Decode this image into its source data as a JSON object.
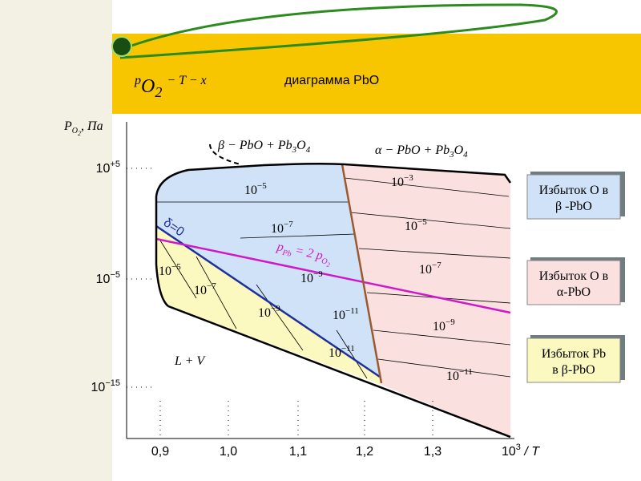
{
  "title": {
    "p": "p",
    "p_sub": "O",
    "p_sub2": "2",
    "formula_rest": "− T − x",
    "text": "диаграмма PbO"
  },
  "axes": {
    "y_label": {
      "p": "P",
      "sub": "O",
      "sub2": "2",
      "unit": ", Па"
    },
    "x_label": {
      "base": "10",
      "exp": "3",
      "rest": " / T"
    },
    "y_ticks": [
      {
        "base": "10",
        "exp": "+5"
      },
      {
        "base": "10",
        "exp": "−5"
      },
      {
        "base": "10",
        "exp": "−15"
      }
    ],
    "x_ticks": [
      "0,9",
      "1,0",
      "1,1",
      "1,2",
      "1,3"
    ]
  },
  "regions": {
    "beta": {
      "prefix": "β − PbO + Pb",
      "sub": "3",
      "mid": "O",
      "sub2": "4"
    },
    "alpha": {
      "prefix": "α − PbO + Pb",
      "sub": "3",
      "mid": "O",
      "sub2": "4"
    },
    "liquid": "L + V",
    "delta": "δ=0",
    "stoich": {
      "p": "p",
      "sub": "Pb",
      "mid": " = 2 p",
      "sub2": "O",
      "sub3": "2"
    }
  },
  "isobars": [
    {
      "base": "10",
      "exp": "−5"
    },
    {
      "base": "10",
      "exp": "−7"
    },
    {
      "base": "10",
      "exp": "−3"
    },
    {
      "base": "10",
      "exp": "−5"
    },
    {
      "base": "10",
      "exp": "−7"
    },
    {
      "base": "10",
      "exp": "−9"
    },
    {
      "base": "10",
      "exp": "−11"
    },
    {
      "base": "10",
      "exp": "−9"
    },
    {
      "base": "10",
      "exp": "−11"
    },
    {
      "base": "10",
      "exp": "−5"
    },
    {
      "base": "10",
      "exp": "−7"
    },
    {
      "base": "10",
      "exp": "−9"
    },
    {
      "base": "10",
      "exp": "−11"
    }
  ],
  "legend": [
    {
      "line1": "Избыток O в",
      "line2": "β -PbO"
    },
    {
      "line1": "Избыток O в",
      "line2": "α-PbO"
    },
    {
      "line1": "Избыток Pb",
      "line2": "в β-PbO"
    }
  ]
}
